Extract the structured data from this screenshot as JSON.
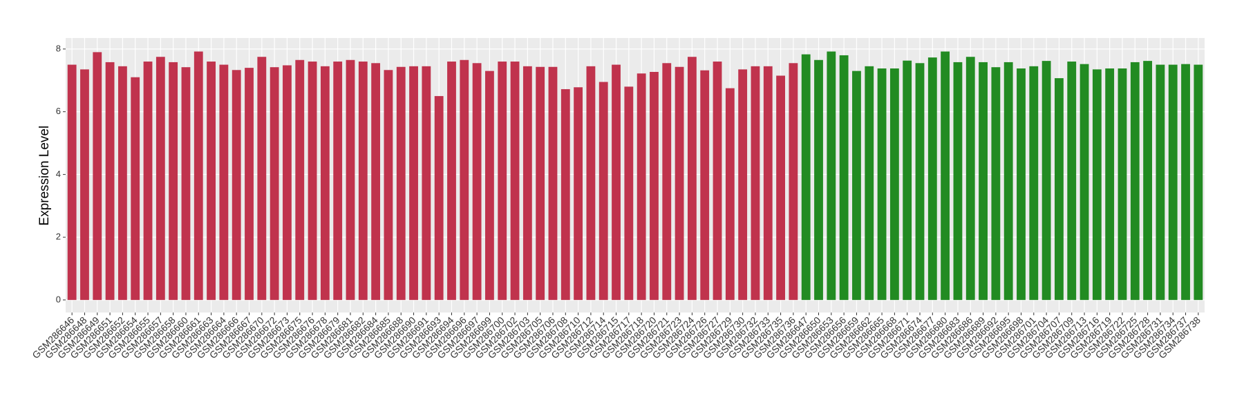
{
  "chart_data": {
    "type": "bar",
    "y_label": "Expression Level",
    "categories": [
      "GSM286646",
      "GSM286648",
      "GSM286649",
      "GSM286651",
      "GSM286652",
      "GSM286654",
      "GSM286655",
      "GSM286657",
      "GSM286658",
      "GSM286660",
      "GSM286661",
      "GSM286663",
      "GSM286664",
      "GSM286666",
      "GSM286667",
      "GSM286670",
      "GSM286672",
      "GSM286673",
      "GSM286675",
      "GSM286676",
      "GSM286678",
      "GSM286679",
      "GSM286681",
      "GSM286682",
      "GSM286684",
      "GSM286685",
      "GSM286688",
      "GSM286690",
      "GSM286691",
      "GSM286693",
      "GSM286694",
      "GSM286696",
      "GSM286697",
      "GSM286699",
      "GSM286700",
      "GSM286702",
      "GSM286703",
      "GSM286705",
      "GSM286706",
      "GSM286708",
      "GSM286710",
      "GSM286712",
      "GSM286714",
      "GSM286715",
      "GSM286717",
      "GSM286718",
      "GSM286720",
      "GSM286721",
      "GSM286723",
      "GSM286724",
      "GSM286726",
      "GSM286727",
      "GSM286729",
      "GSM286730",
      "GSM286732",
      "GSM286733",
      "GSM286735",
      "GSM286736",
      "GSM286647",
      "GSM286650",
      "GSM286653",
      "GSM286656",
      "GSM286659",
      "GSM286662",
      "GSM286665",
      "GSM286668",
      "GSM286671",
      "GSM286674",
      "GSM286677",
      "GSM286680",
      "GSM286683",
      "GSM286686",
      "GSM286689",
      "GSM286692",
      "GSM286695",
      "GSM286698",
      "GSM286701",
      "GSM286704",
      "GSM286707",
      "GSM286709",
      "GSM286713",
      "GSM286716",
      "GSM286719",
      "GSM286722",
      "GSM286725",
      "GSM286728",
      "GSM286731",
      "GSM286734",
      "GSM286737",
      "GSM286738"
    ],
    "values": [
      7.5,
      7.35,
      7.9,
      7.58,
      7.45,
      7.1,
      7.6,
      7.75,
      7.58,
      7.42,
      7.92,
      7.6,
      7.5,
      7.33,
      7.4,
      7.75,
      7.42,
      7.48,
      7.65,
      7.6,
      7.45,
      7.6,
      7.65,
      7.6,
      7.55,
      7.33,
      7.43,
      7.45,
      7.45,
      6.5,
      7.6,
      7.65,
      7.55,
      7.3,
      7.6,
      7.6,
      7.45,
      7.43,
      7.43,
      6.72,
      6.78,
      7.45,
      6.95,
      7.5,
      6.8,
      7.22,
      7.27,
      7.55,
      7.43,
      7.75,
      7.32,
      7.6,
      6.75,
      7.35,
      7.45,
      7.45,
      7.15,
      7.55,
      7.83,
      7.65,
      7.92,
      7.8,
      7.3,
      7.45,
      7.38,
      7.38,
      7.63,
      7.55,
      7.73,
      7.92,
      7.58,
      7.75,
      7.58,
      7.42,
      7.58,
      7.38,
      7.45,
      7.62,
      7.07,
      7.6,
      7.52,
      7.35,
      7.38,
      7.38,
      7.58,
      7.62,
      7.5,
      7.5,
      7.52,
      7.5
    ],
    "colors": [
      "#c0334d",
      "#c0334d",
      "#c0334d",
      "#c0334d",
      "#c0334d",
      "#c0334d",
      "#c0334d",
      "#c0334d",
      "#c0334d",
      "#c0334d",
      "#c0334d",
      "#c0334d",
      "#c0334d",
      "#c0334d",
      "#c0334d",
      "#c0334d",
      "#c0334d",
      "#c0334d",
      "#c0334d",
      "#c0334d",
      "#c0334d",
      "#c0334d",
      "#c0334d",
      "#c0334d",
      "#c0334d",
      "#c0334d",
      "#c0334d",
      "#c0334d",
      "#c0334d",
      "#c0334d",
      "#c0334d",
      "#c0334d",
      "#c0334d",
      "#c0334d",
      "#c0334d",
      "#c0334d",
      "#c0334d",
      "#c0334d",
      "#c0334d",
      "#c0334d",
      "#c0334d",
      "#c0334d",
      "#c0334d",
      "#c0334d",
      "#c0334d",
      "#c0334d",
      "#c0334d",
      "#c0334d",
      "#c0334d",
      "#c0334d",
      "#c0334d",
      "#c0334d",
      "#c0334d",
      "#c0334d",
      "#c0334d",
      "#c0334d",
      "#c0334d",
      "#c0334d",
      "#228b22",
      "#228b22",
      "#228b22",
      "#228b22",
      "#228b22",
      "#228b22",
      "#228b22",
      "#228b22",
      "#228b22",
      "#228b22",
      "#228b22",
      "#228b22",
      "#228b22",
      "#228b22",
      "#228b22",
      "#228b22",
      "#228b22",
      "#228b22",
      "#228b22",
      "#228b22",
      "#228b22",
      "#228b22",
      "#228b22",
      "#228b22",
      "#228b22",
      "#228b22",
      "#228b22",
      "#228b22",
      "#228b22",
      "#228b22",
      "#228b22",
      "#228b22"
    ],
    "ylim": [
      -0.4,
      8.35
    ],
    "yticks": [
      0,
      2,
      4,
      6,
      8
    ],
    "grid": true
  }
}
